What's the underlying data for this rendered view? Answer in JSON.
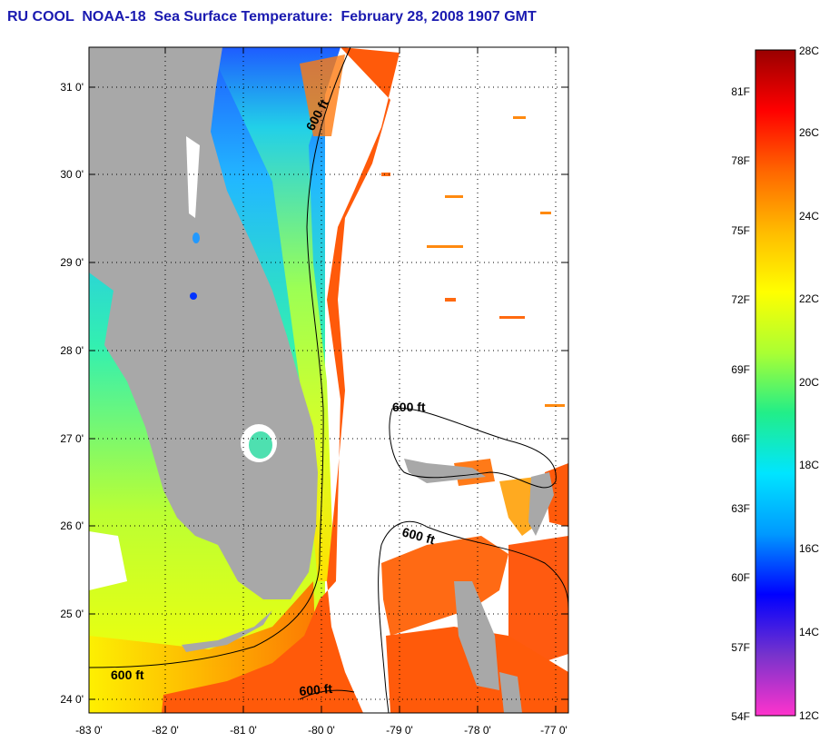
{
  "title": "RU COOL  NOAA-18  Sea Surface Temperature:  February 28, 2008 1907 GMT",
  "map": {
    "lon_range": [
      -83.0,
      -76.9
    ],
    "lat_range": [
      23.85,
      31.45
    ],
    "lon_ticks": [
      "-83 0'",
      "-82 0'",
      "-81 0'",
      "-80 0'",
      "-79 0'",
      "-78 0'",
      "-77 0'"
    ],
    "lat_ticks": [
      "31 0'",
      "30 0'",
      "29 0'",
      "28 0'",
      "27 0'",
      "26 0'",
      "25 0'",
      "24 0'"
    ],
    "grid": "dotted",
    "contour_labels": [
      "600 ft",
      "600 ft",
      "600 ft",
      "600 ft",
      "600 ft"
    ],
    "colors": {
      "land": "#a8a8a8",
      "no_data": "#ffffff",
      "gulf_stream": "#ff5a0a"
    }
  },
  "colorbar": {
    "fahrenheit_labels": [
      "81F",
      "78F",
      "75F",
      "72F",
      "69F",
      "66F",
      "63F",
      "60F",
      "57F",
      "54F"
    ],
    "celsius_labels": [
      "28C",
      "26C",
      "24C",
      "22C",
      "20C",
      "18C",
      "16C",
      "14C",
      "12C"
    ],
    "stops": [
      "#ff33cc",
      "#7733cc",
      "#0000ff",
      "#0099ff",
      "#00e5ff",
      "#22ee88",
      "#aaff33",
      "#ffff00",
      "#ffbb00",
      "#ff6600",
      "#ff0000",
      "#990000"
    ]
  }
}
